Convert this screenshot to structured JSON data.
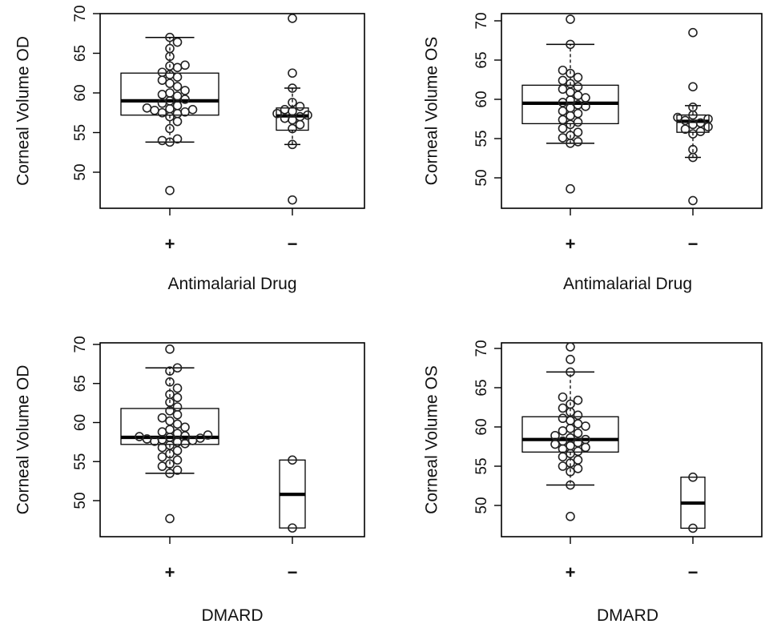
{
  "chart_data": [
    {
      "type": "box",
      "ylabel": "Corneal Volume OD",
      "xlabel": "Antimalarial Drug",
      "categories": [
        "+",
        "−"
      ],
      "ylim": [
        45,
        70
      ],
      "yticks": [
        50,
        55,
        60,
        65,
        70
      ],
      "boxes": [
        {
          "category": "+",
          "whisker_low": 53.8,
          "q1": 57.2,
          "median": 59.0,
          "q3": 62.5,
          "whisker_high": 67.0,
          "points": [
            47.7,
            53.8,
            54.2,
            54.0,
            55.5,
            56.4,
            57.0,
            57.4,
            57.5,
            57.6,
            57.8,
            57.9,
            58.0,
            58.1,
            58.4,
            58.7,
            59.0,
            59.2,
            59.6,
            59.8,
            60.0,
            60.3,
            60.8,
            61.2,
            61.6,
            62.0,
            62.3,
            62.6,
            63.2,
            63.4,
            63.5,
            64.6,
            65.6,
            66.4,
            67.0
          ]
        },
        {
          "category": "−",
          "whisker_low": 53.5,
          "q1": 55.3,
          "median": 57.1,
          "q3": 58.1,
          "whisker_high": 60.6,
          "points": [
            46.5,
            53.5,
            55.5,
            56.0,
            56.6,
            56.8,
            57.0,
            57.2,
            57.4,
            57.7,
            57.9,
            58.3,
            58.8,
            60.6,
            62.5,
            69.4
          ]
        }
      ]
    },
    {
      "type": "box",
      "ylabel": "Corneal Volume OS",
      "xlabel": "Antimalarial Drug",
      "categories": [
        "+",
        "−"
      ],
      "ylim": [
        45,
        70
      ],
      "yticks": [
        50,
        55,
        60,
        65,
        70
      ],
      "boxes": [
        {
          "category": "+",
          "whisker_low": 54.4,
          "q1": 56.9,
          "median": 59.5,
          "q3": 61.8,
          "whisker_high": 67.0,
          "points": [
            48.6,
            54.4,
            54.6,
            55.1,
            55.4,
            55.8,
            56.3,
            56.8,
            57.1,
            57.4,
            57.9,
            58.2,
            58.5,
            58.9,
            59.1,
            59.3,
            59.6,
            59.9,
            60.2,
            60.5,
            60.9,
            61.3,
            61.6,
            62.0,
            62.4,
            62.8,
            63.3,
            63.7,
            67.0,
            70.2
          ]
        },
        {
          "category": "−",
          "whisker_low": 52.6,
          "q1": 55.8,
          "median": 57.2,
          "q3": 58.0,
          "whisker_high": 59.2,
          "points": [
            47.1,
            52.6,
            53.6,
            55.6,
            55.9,
            56.2,
            56.5,
            56.8,
            57.0,
            57.3,
            57.5,
            57.7,
            58.0,
            59.0,
            61.6,
            68.5
          ]
        }
      ]
    },
    {
      "type": "box",
      "ylabel": "Corneal Volume OD",
      "xlabel": "DMARD",
      "categories": [
        "+",
        "−"
      ],
      "ylim": [
        45,
        70
      ],
      "yticks": [
        50,
        55,
        60,
        65,
        70
      ],
      "boxes": [
        {
          "category": "+",
          "whisker_low": 53.5,
          "q1": 57.2,
          "median": 58.1,
          "q3": 61.8,
          "whisker_high": 67.0,
          "points": [
            47.7,
            53.5,
            53.9,
            54.4,
            54.7,
            55.2,
            55.6,
            56.0,
            56.4,
            56.8,
            57.1,
            57.3,
            57.5,
            57.6,
            57.7,
            57.8,
            57.9,
            58.0,
            58.1,
            58.2,
            58.3,
            58.4,
            58.6,
            58.8,
            59.1,
            59.4,
            59.8,
            60.2,
            60.6,
            61.0,
            61.5,
            62.0,
            62.6,
            63.2,
            63.6,
            64.4,
            65.2,
            66.6,
            67.0,
            69.4
          ]
        },
        {
          "category": "−",
          "whisker_low": 46.5,
          "q1": 46.5,
          "median": 50.8,
          "q3": 55.2,
          "whisker_high": 55.2,
          "points": [
            46.5,
            55.2
          ]
        }
      ]
    },
    {
      "type": "box",
      "ylabel": "Corneal Volume OS",
      "xlabel": "DMARD",
      "categories": [
        "+",
        "−"
      ],
      "ylim": [
        45,
        70
      ],
      "yticks": [
        50,
        55,
        60,
        65,
        70
      ],
      "boxes": [
        {
          "category": "+",
          "whisker_low": 52.6,
          "q1": 56.8,
          "median": 58.4,
          "q3": 61.3,
          "whisker_high": 67.0,
          "points": [
            48.6,
            52.6,
            54.3,
            54.7,
            55.0,
            55.4,
            55.8,
            56.2,
            56.6,
            56.9,
            57.2,
            57.4,
            57.6,
            57.8,
            58.0,
            58.2,
            58.4,
            58.6,
            58.9,
            59.2,
            59.5,
            59.8,
            60.1,
            60.4,
            60.8,
            61.1,
            61.5,
            61.9,
            62.4,
            62.9,
            63.4,
            63.8,
            67.0,
            68.6,
            70.2
          ]
        },
        {
          "category": "−",
          "whisker_low": 47.1,
          "q1": 47.1,
          "median": 50.3,
          "q3": 53.6,
          "whisker_high": 53.6,
          "points": [
            47.1,
            53.6
          ]
        }
      ]
    }
  ]
}
